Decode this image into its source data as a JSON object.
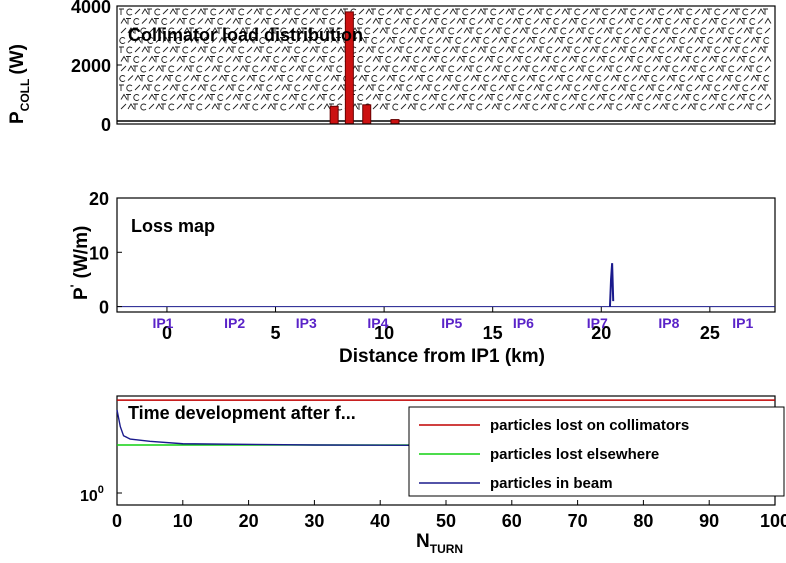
{
  "chart_data": [
    {
      "type": "bar",
      "title": "Collimator load distribution",
      "ylabel": "P",
      "ylabel_sub": "COLL",
      "ylabel_unit": "(W)",
      "xlim": [
        -2.3,
        28
      ],
      "ylim": [
        0,
        4000
      ],
      "yticks": [
        0,
        2000,
        4000
      ],
      "color": "#cc1111",
      "bars": [
        {
          "x": 7.7,
          "value": 600
        },
        {
          "x": 8.4,
          "value": 3800
        },
        {
          "x": 9.2,
          "value": 650
        },
        {
          "x": 10.5,
          "value": 150
        }
      ],
      "grid": false
    },
    {
      "type": "line",
      "title": "Loss map",
      "ylabel": "P",
      "ylabel_sup": "'",
      "ylabel_unit": "(W/m)",
      "xlabel": "Distance from IP1 (km)",
      "xlim": [
        -2.3,
        28
      ],
      "ylim": [
        -1,
        20
      ],
      "xticks": [
        0,
        5,
        10,
        15,
        20,
        25
      ],
      "yticks": [
        0,
        10,
        20
      ],
      "series": [
        {
          "color": "#1a1a8c",
          "points": [
            [
              20.4,
              0
            ],
            [
              20.45,
              5
            ],
            [
              20.5,
              8
            ],
            [
              20.55,
              1
            ]
          ]
        }
      ],
      "ip_labels": [
        {
          "text": "IP1",
          "x": 0
        },
        {
          "text": "IP2",
          "x": 3.3
        },
        {
          "text": "IP3",
          "x": 6.6
        },
        {
          "text": "IP4",
          "x": 9.9
        },
        {
          "text": "IP5",
          "x": 13.3
        },
        {
          "text": "IP6",
          "x": 16.6
        },
        {
          "text": "IP7",
          "x": 20
        },
        {
          "text": "IP8",
          "x": 23.3
        },
        {
          "text": "IP1",
          "x": 26.7
        }
      ],
      "grid": false
    },
    {
      "type": "line",
      "title": "Time development after f...",
      "xlabel": "N",
      "xlabel_sub": "TURN",
      "xlim": [
        0,
        100
      ],
      "ylog": true,
      "ytick_base": "10",
      "ytick_exp": "0",
      "xticks": [
        0,
        10,
        20,
        30,
        40,
        50,
        60,
        70,
        80,
        90,
        100
      ],
      "series": [
        {
          "name": "particles lost on collimators",
          "color": "#c00000",
          "points": [
            [
              0,
              9.5
            ],
            [
              100,
              9.5
            ]
          ]
        },
        {
          "name": "particles lost elsewhere",
          "color": "#10d010",
          "points": [
            [
              0,
              3.2
            ],
            [
              100,
              3.2
            ]
          ]
        },
        {
          "name": "particles in beam",
          "color": "#1a1a8c",
          "points": [
            [
              0,
              7.5
            ],
            [
              0.5,
              5
            ],
            [
              1,
              4
            ],
            [
              2,
              3.7
            ],
            [
              5,
              3.5
            ],
            [
              10,
              3.3
            ],
            [
              30,
              3.2
            ],
            [
              60,
              3.15
            ],
            [
              100,
              3.1
            ]
          ]
        }
      ],
      "legend_position": "bottom-right",
      "grid": false
    }
  ]
}
